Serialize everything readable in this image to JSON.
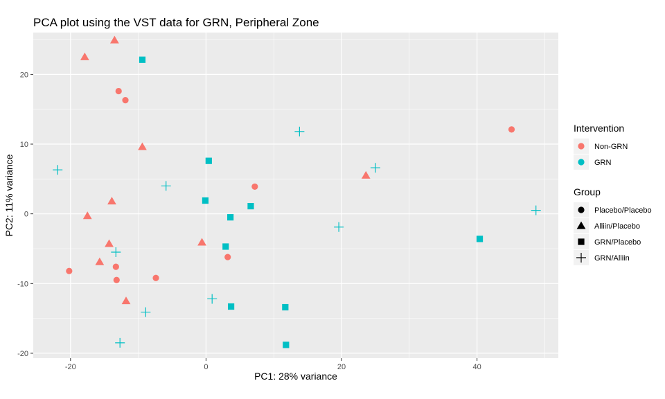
{
  "chart_data": {
    "type": "scatter",
    "title": "PCA plot using the VST data for GRN, Peripheral Zone",
    "xlabel": "PC1: 28% variance",
    "ylabel": "PC2: 11% variance",
    "xlim": [
      -25.5,
      52
    ],
    "ylim": [
      -20.7,
      26
    ],
    "x_ticks": [
      -20,
      0,
      20,
      40
    ],
    "y_ticks": [
      -20,
      -10,
      0,
      10,
      20
    ],
    "x_tick_labels": [
      "-20",
      "0",
      "20",
      "40"
    ],
    "y_tick_labels": [
      "-20",
      "-10",
      "0",
      "10",
      "20"
    ],
    "grid": true,
    "legend_position": "right",
    "colors": {
      "Non-GRN": "#f8766d",
      "GRN": "#00bfc4"
    },
    "legends": [
      {
        "title": "Intervention",
        "kind": "color",
        "entries": [
          {
            "label": "Non-GRN",
            "color": "#f8766d"
          },
          {
            "label": "GRN",
            "color": "#00bfc4"
          }
        ]
      },
      {
        "title": "Group",
        "kind": "shape",
        "entries": [
          {
            "label": "Placebo/Placebo",
            "shape": "circle"
          },
          {
            "label": "Alliin/Placebo",
            "shape": "triangle"
          },
          {
            "label": "GRN/Placebo",
            "shape": "square"
          },
          {
            "label": "GRN/Alliin",
            "shape": "plus"
          }
        ]
      }
    ],
    "series": [
      {
        "intervention": "Non-GRN",
        "group": "Placebo/Placebo",
        "shape": "circle",
        "points": [
          [
            -12.9,
            17.6
          ],
          [
            -11.9,
            16.3
          ],
          [
            -20.2,
            -8.2
          ],
          [
            -13.3,
            -7.6
          ],
          [
            -13.2,
            -9.5
          ],
          [
            -7.4,
            -9.2
          ],
          [
            3.2,
            -6.2
          ],
          [
            7.2,
            3.9
          ],
          [
            45.1,
            12.1
          ]
        ]
      },
      {
        "intervention": "Non-GRN",
        "group": "Alliin/Placebo",
        "shape": "triangle",
        "points": [
          [
            -13.5,
            24.9
          ],
          [
            -17.9,
            22.5
          ],
          [
            -9.4,
            9.6
          ],
          [
            -13.9,
            1.8
          ],
          [
            -17.5,
            -0.3
          ],
          [
            -14.3,
            -4.3
          ],
          [
            -15.7,
            -6.9
          ],
          [
            -11.8,
            -12.5
          ],
          [
            -0.6,
            -4.1
          ],
          [
            23.6,
            5.5
          ]
        ]
      },
      {
        "intervention": "GRN",
        "group": "GRN/Placebo",
        "shape": "square",
        "points": [
          [
            -9.4,
            22.1
          ],
          [
            0.4,
            7.6
          ],
          [
            -0.1,
            1.9
          ],
          [
            3.6,
            -0.5
          ],
          [
            6.6,
            1.1
          ],
          [
            2.9,
            -4.7
          ],
          [
            3.7,
            -13.3
          ],
          [
            11.7,
            -13.4
          ],
          [
            11.8,
            -18.8
          ],
          [
            40.4,
            -3.6
          ]
        ]
      },
      {
        "intervention": "GRN",
        "group": "GRN/Alliin",
        "shape": "plus",
        "points": [
          [
            -21.9,
            6.3
          ],
          [
            -5.9,
            4.0
          ],
          [
            -13.3,
            -5.5
          ],
          [
            -8.9,
            -14.1
          ],
          [
            -12.7,
            -18.5
          ],
          [
            0.9,
            -12.2
          ],
          [
            13.8,
            11.8
          ],
          [
            19.6,
            -1.9
          ],
          [
            25.0,
            6.6
          ],
          [
            48.7,
            0.5
          ]
        ]
      }
    ]
  }
}
